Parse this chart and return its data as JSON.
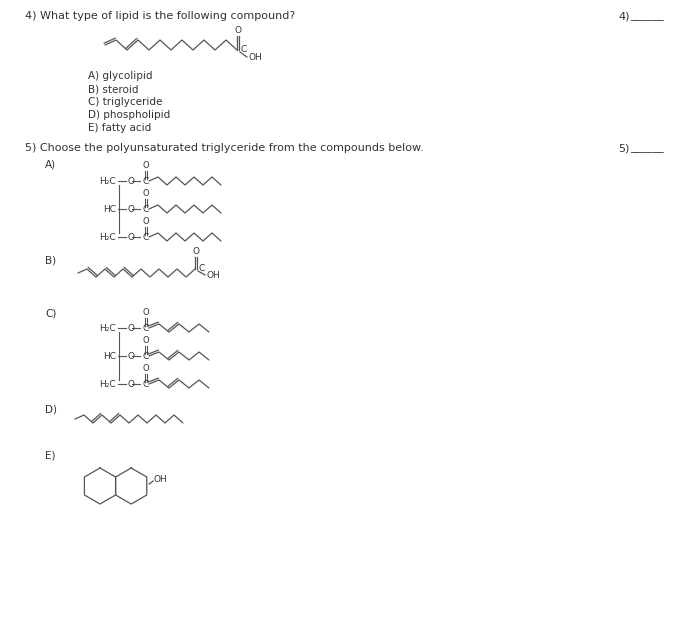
{
  "bg_color": "#ffffff",
  "q4_text": "4) What type of lipid is the following compound?",
  "q4_number": "4)",
  "q4_choices": [
    "A) glycolipid",
    "B) steroid",
    "C) triglyceride",
    "D) phospholipid",
    "E) fatty acid"
  ],
  "q5_text": "5) Choose the polyunsaturated triglyceride from the compounds below.",
  "q5_number": "5)",
  "answer_line": "______",
  "text_color": "#333333",
  "line_color": "#555555",
  "fs_main": 8.0,
  "fs_small": 7.5,
  "fs_chem": 6.5
}
